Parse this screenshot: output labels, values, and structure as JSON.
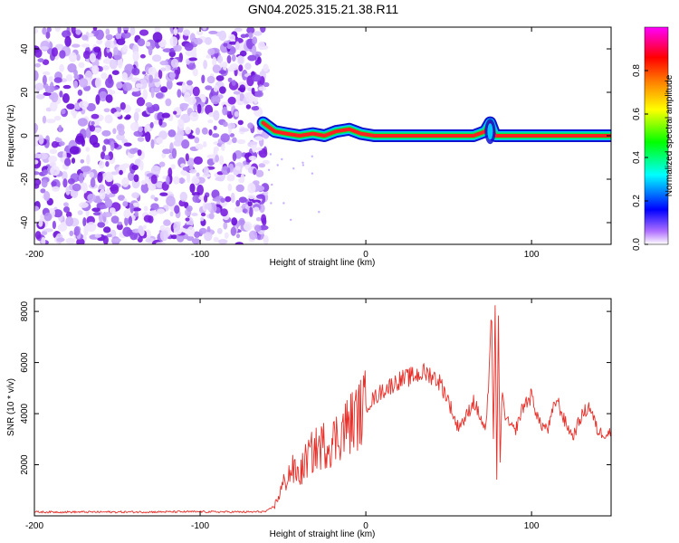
{
  "title": "GN04.2025.315.21.38.R11",
  "colors": {
    "series": "#e8302a",
    "scatter": "#7a1fe0",
    "axis": "#000000"
  },
  "chart_data": [
    {
      "type": "heatmap",
      "title": "",
      "xlabel": "Height of straight line (km)",
      "ylabel": "Frequency (Hz)",
      "xlim": [
        -200,
        148
      ],
      "ylim": [
        -50,
        50
      ],
      "x_ticks": [
        "-200",
        "-100",
        "0",
        "100"
      ],
      "y_ticks": [
        "-40",
        "-20",
        "0",
        "20",
        "40"
      ],
      "noise_region_x": [
        -200,
        -60
      ],
      "trace": {
        "x": [
          -62,
          -55,
          -48,
          -40,
          -32,
          -25,
          -18,
          -10,
          -3,
          5,
          15,
          30,
          50,
          65,
          72,
          75,
          78,
          82,
          100,
          120,
          148
        ],
        "freq": [
          6,
          2,
          1,
          0,
          1,
          0,
          2,
          3,
          1,
          0,
          0,
          0,
          0,
          0,
          2,
          6,
          0,
          0,
          0,
          0,
          0
        ]
      },
      "colorbar": {
        "label": "Normalized spectral amplitude",
        "ticks": [
          "0.0",
          "0.2",
          "0.4",
          "0.6",
          "0.8"
        ],
        "range": [
          0,
          1
        ],
        "colors": [
          "#ffffff",
          "#9933ff",
          "#0000ff",
          "#00ffff",
          "#00ff00",
          "#ffff00",
          "#ff8800",
          "#ff0000",
          "#ff00ff"
        ]
      }
    },
    {
      "type": "line",
      "title": "",
      "xlabel": "Height of straight line (km)",
      "ylabel": "SNR (10 * v/v)",
      "xlim": [
        -200,
        148
      ],
      "ylim": [
        0,
        8500
      ],
      "x_ticks": [
        "-200",
        "-100",
        "0",
        "100"
      ],
      "y_ticks": [
        "2000",
        "4000",
        "6000",
        "8000"
      ],
      "series": [
        {
          "x": [
            -200,
            -150,
            -100,
            -70,
            -60,
            -55,
            -50,
            -45,
            -40,
            -35,
            -30,
            -25,
            -20,
            -15,
            -10,
            -5,
            0,
            5,
            10,
            15,
            20,
            25,
            30,
            35,
            40,
            45,
            50,
            55,
            60,
            65,
            70,
            72,
            74,
            76,
            77,
            78,
            79,
            80,
            81,
            82,
            85,
            90,
            95,
            100,
            105,
            110,
            115,
            120,
            125,
            130,
            135,
            140,
            145,
            148
          ],
          "y": [
            150,
            150,
            160,
            150,
            170,
            400,
            1200,
            1800,
            1600,
            2300,
            2600,
            2800,
            2900,
            3300,
            3600,
            3900,
            4300,
            4600,
            4900,
            5100,
            5300,
            5400,
            5500,
            5600,
            5500,
            5200,
            4500,
            3500,
            3800,
            4500,
            3700,
            3300,
            4800,
            8000,
            3000,
            8300,
            1500,
            7500,
            2000,
            4700,
            3700,
            3300,
            4300,
            4700,
            3600,
            3400,
            4600,
            3700,
            3100,
            3900,
            4300,
            3300,
            3200,
            3300
          ]
        }
      ]
    }
  ]
}
